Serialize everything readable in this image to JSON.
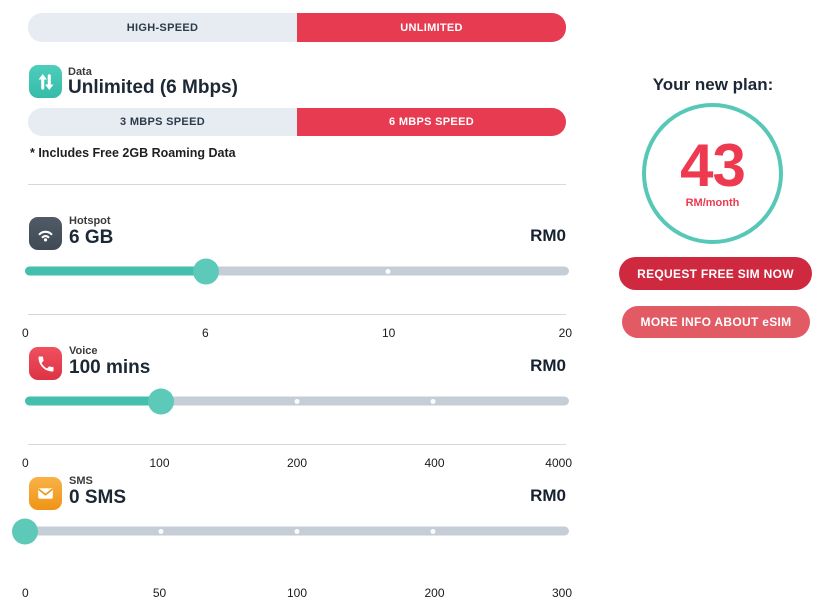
{
  "colors": {
    "accent_red": "#e63b51",
    "primary_button_red": "#cf2940",
    "secondary_button_red": "#e15a64",
    "price_red": "#ee3a50",
    "circle_teal": "#57c8b8",
    "slider_fill_teal": "#43bfad",
    "slider_handle_teal": "#5dc9b8",
    "slider_track_gray": "#c5ced6",
    "toggle_inactive_bg": "#e7ebf2",
    "data_icon_teal": "#3fc4b2",
    "hotspot_icon_slate": "#47525e",
    "voice_icon_red": "#e84756",
    "sms_icon_orange": "#f5a02c"
  },
  "mode_toggle": {
    "left": "HIGH-SPEED",
    "right": "UNLIMITED",
    "selected": "UNLIMITED"
  },
  "data_section": {
    "icon": "data-transfer-icon",
    "label": "Data",
    "value": "Unlimited (6 Mbps)",
    "speed_toggle": {
      "left": "3 MBPS SPEED",
      "right": "6 MBPS SPEED",
      "selected": "6 MBPS SPEED"
    },
    "note": "* Includes Free 2GB Roaming Data"
  },
  "sliders": [
    {
      "icon": "wifi-icon",
      "name": "Hotspot",
      "value": "6 GB",
      "price": "RM0",
      "ticks": [
        "0",
        "6",
        "10",
        "20"
      ],
      "fraction": 0.3333,
      "dots": [
        0.6667
      ]
    },
    {
      "icon": "phone-icon",
      "name": "Voice",
      "value": "100 mins",
      "price": "RM0",
      "ticks": [
        "0",
        "100",
        "200",
        "400",
        "4000"
      ],
      "fraction": 0.25,
      "dots": [
        0.5,
        0.75
      ]
    },
    {
      "icon": "envelope-icon",
      "name": "SMS",
      "value": "0 SMS",
      "price": "RM0",
      "ticks": [
        "0",
        "50",
        "100",
        "200",
        "300"
      ],
      "fraction": 0,
      "dots": [
        0.25,
        0.5,
        0.75
      ]
    }
  ],
  "summary": {
    "title": "Your new plan:",
    "price": "43",
    "price_unit": "RM/month",
    "primary_button": "REQUEST FREE SIM NOW",
    "secondary_button": "MORE INFO ABOUT eSIM"
  }
}
